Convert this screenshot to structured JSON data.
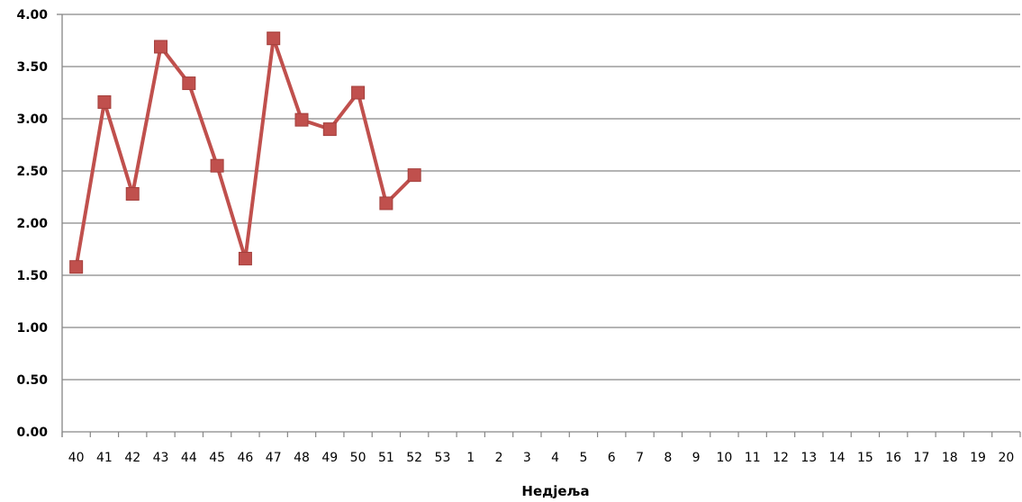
{
  "chart_data": {
    "type": "line",
    "title": "",
    "xlabel": "Недјеља",
    "ylabel": "",
    "categories": [
      "40",
      "41",
      "42",
      "43",
      "44",
      "45",
      "46",
      "47",
      "48",
      "49",
      "50",
      "51",
      "52",
      "53",
      "1",
      "2",
      "3",
      "4",
      "5",
      "6",
      "7",
      "8",
      "9",
      "10",
      "11",
      "12",
      "13",
      "14",
      "15",
      "16",
      "17",
      "18",
      "19",
      "20"
    ],
    "y_ticks": [
      "0.00",
      "0.50",
      "1.00",
      "1.50",
      "2.00",
      "2.50",
      "3.00",
      "3.50",
      "4.00"
    ],
    "ylim": [
      0,
      4
    ],
    "grid": "horizontal",
    "series": [
      {
        "color": "#c0504d",
        "marker": "square",
        "values": [
          1.58,
          3.16,
          2.28,
          3.69,
          3.34,
          2.55,
          1.66,
          3.77,
          2.99,
          2.9,
          3.25,
          2.19,
          2.46,
          null,
          null,
          null,
          null,
          null,
          null,
          null,
          null,
          null,
          null,
          null,
          null,
          null,
          null,
          null,
          null,
          null,
          null,
          null,
          null,
          null
        ]
      }
    ]
  }
}
